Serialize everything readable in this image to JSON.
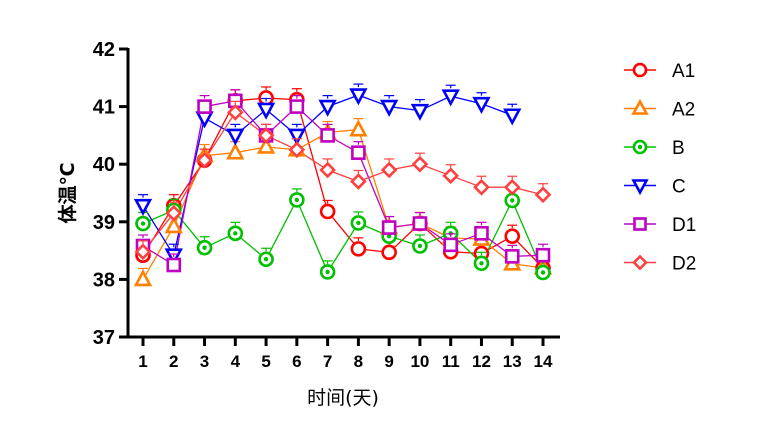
{
  "chart_data": {
    "type": "line",
    "title": "",
    "xlabel": "时间(天)",
    "ylabel": "体温℃",
    "ylim": [
      37,
      42
    ],
    "yticks": [
      37,
      38,
      39,
      40,
      41,
      42
    ],
    "x": [
      1,
      2,
      3,
      4,
      5,
      6,
      7,
      8,
      9,
      10,
      11,
      12,
      13,
      14
    ],
    "grid": false,
    "legend_position": "right",
    "series": [
      {
        "name": "A1",
        "color": "#ff0000",
        "marker": "circle",
        "values": [
          38.42,
          39.28,
          40.07,
          41.1,
          41.15,
          41.12,
          39.18,
          38.53,
          38.47,
          38.97,
          38.48,
          38.45,
          38.75,
          38.2
        ]
      },
      {
        "name": "A2",
        "color": "#ff8000",
        "marker": "triangle-up",
        "values": [
          38.0,
          38.92,
          40.15,
          40.2,
          40.3,
          40.25,
          40.55,
          40.6,
          38.9,
          38.97,
          38.72,
          38.7,
          38.27,
          38.2
        ]
      },
      {
        "name": "B",
        "color": "#00c000",
        "marker": "circle-dot",
        "values": [
          38.97,
          39.2,
          38.55,
          38.8,
          38.35,
          39.38,
          38.13,
          38.98,
          38.75,
          38.58,
          38.8,
          38.28,
          39.37,
          38.12
        ]
      },
      {
        "name": "C",
        "color": "#0000ff",
        "marker": "triangle-down",
        "values": [
          39.28,
          38.42,
          40.8,
          40.5,
          40.95,
          40.5,
          41.0,
          41.2,
          41.0,
          40.93,
          41.18,
          41.05,
          40.85,
          null
        ]
      },
      {
        "name": "D1",
        "color": "#c000c0",
        "marker": "square",
        "values": [
          38.58,
          38.25,
          41.0,
          41.1,
          40.5,
          41.0,
          40.5,
          40.2,
          38.9,
          38.97,
          38.6,
          38.8,
          38.4,
          38.42
        ]
      },
      {
        "name": "D2",
        "color": "#ff4040",
        "marker": "diamond",
        "values": [
          38.48,
          39.15,
          40.07,
          40.9,
          40.5,
          40.25,
          39.9,
          39.7,
          39.9,
          40.0,
          39.8,
          39.6,
          39.6,
          39.47
        ]
      }
    ]
  },
  "legend": {
    "items": [
      {
        "label": "A1"
      },
      {
        "label": "A2"
      },
      {
        "label": "B"
      },
      {
        "label": "C"
      },
      {
        "label": "D1"
      },
      {
        "label": "D2"
      }
    ]
  }
}
